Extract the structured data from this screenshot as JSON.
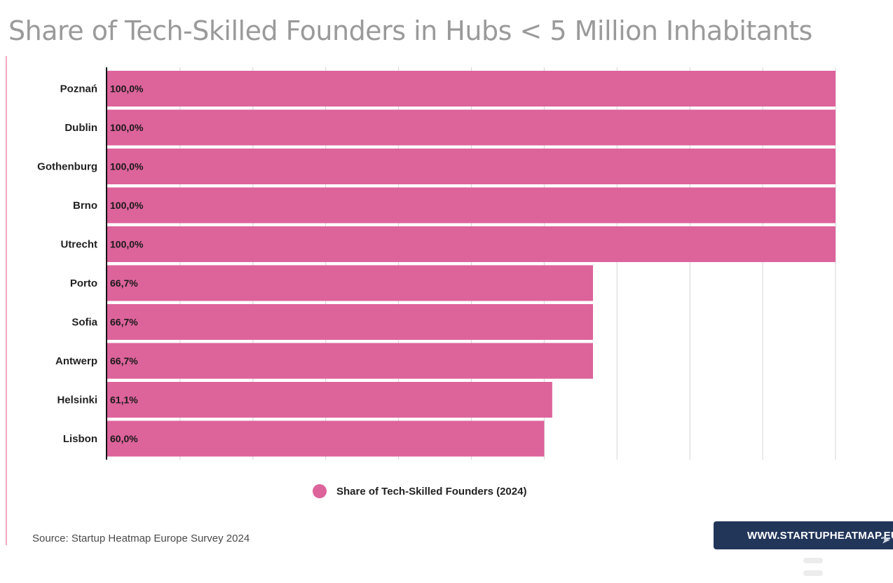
{
  "title": "Share of Tech-Skilled Founders in Hubs < 5 Million Inhabitants",
  "source": "Source: Startup Heatmap Europe Survey 2024",
  "brand_button": {
    "label": "WWW.STARTUPHEATMAP.EU"
  },
  "colors": {
    "bar": "#dd639b",
    "grid": "#d4d4d4",
    "axis": "#111111",
    "title": "#9a9a9a",
    "brand_bg": "#22365a",
    "accent": "#f2a7c3"
  },
  "chart_data": {
    "type": "bar",
    "orientation": "horizontal",
    "categories": [
      "Poznań",
      "Dublin",
      "Gothenburg",
      "Brno",
      "Utrecht",
      "Porto",
      "Sofia",
      "Antwerp",
      "Helsinki",
      "Lisbon"
    ],
    "series": [
      {
        "name": "Share of Tech-Skilled Founders (2024)",
        "values": [
          100.0,
          100.0,
          100.0,
          100.0,
          100.0,
          66.7,
          66.7,
          66.7,
          61.1,
          60.0
        ]
      }
    ],
    "data_labels": [
      "100,0%",
      "100,0%",
      "100,0%",
      "100,0%",
      "100,0%",
      "66,7%",
      "66,7%",
      "66,7%",
      "61,1%",
      "60,0%"
    ],
    "xlim": [
      0,
      100
    ],
    "grid": true,
    "legend": "bottom-center"
  }
}
